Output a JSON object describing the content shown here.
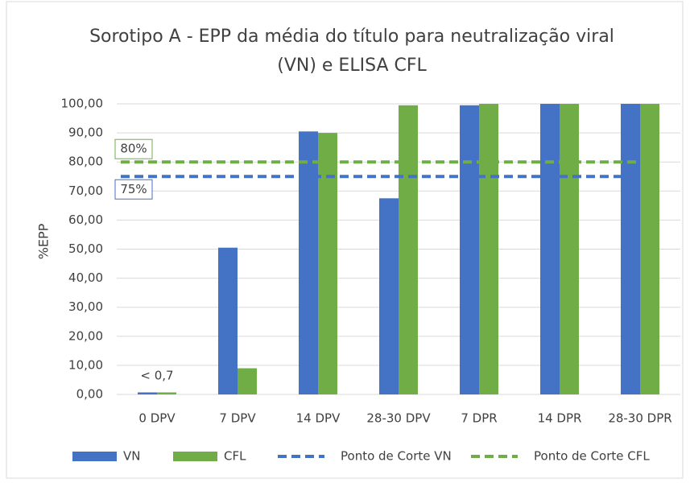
{
  "chart_data": {
    "type": "bar",
    "title": [
      "Sorotipo A - EPP da média do título para neutralização viral",
      "(VN) e ELISA CFL"
    ],
    "y_label": "%EPP",
    "categories": [
      "0 DPV",
      "7 DPV",
      "14 DPV",
      "28-30 DPV",
      "7 DPR",
      "14 DPR",
      "28-30 DPR"
    ],
    "series": [
      {
        "name": "VN",
        "color": "#4472c4",
        "values": [
          0.7,
          50.5,
          90.5,
          67.5,
          99.5,
          100,
          100
        ]
      },
      {
        "name": "CFL",
        "color": "#70ad47",
        "values": [
          0.7,
          9,
          90,
          99.5,
          100,
          100,
          100
        ]
      }
    ],
    "cutoffs": [
      {
        "name": "Ponto de Corte VN",
        "color": "#4472c4",
        "value": 75,
        "value_label": "75%"
      },
      {
        "name": "Ponto de Corte CFL",
        "color": "#70ad47",
        "value": 80,
        "value_label": "80%"
      }
    ],
    "annotation": "< 0,7",
    "ylim": [
      0,
      100
    ],
    "yticks": [
      {
        "value": 0,
        "label": "0,00"
      },
      {
        "value": 10,
        "label": "10,00"
      },
      {
        "value": 20,
        "label": "20,00"
      },
      {
        "value": 30,
        "label": "30,00"
      },
      {
        "value": 40,
        "label": "40,00"
      },
      {
        "value": 50,
        "label": "50,00"
      },
      {
        "value": 60,
        "label": "60,00"
      },
      {
        "value": 70,
        "label": "70,00"
      },
      {
        "value": 80,
        "label": "80,00"
      },
      {
        "value": 90,
        "label": "90,00"
      },
      {
        "value": 100,
        "label": "100,00"
      }
    ],
    "grid": true,
    "legend": "bottom"
  }
}
